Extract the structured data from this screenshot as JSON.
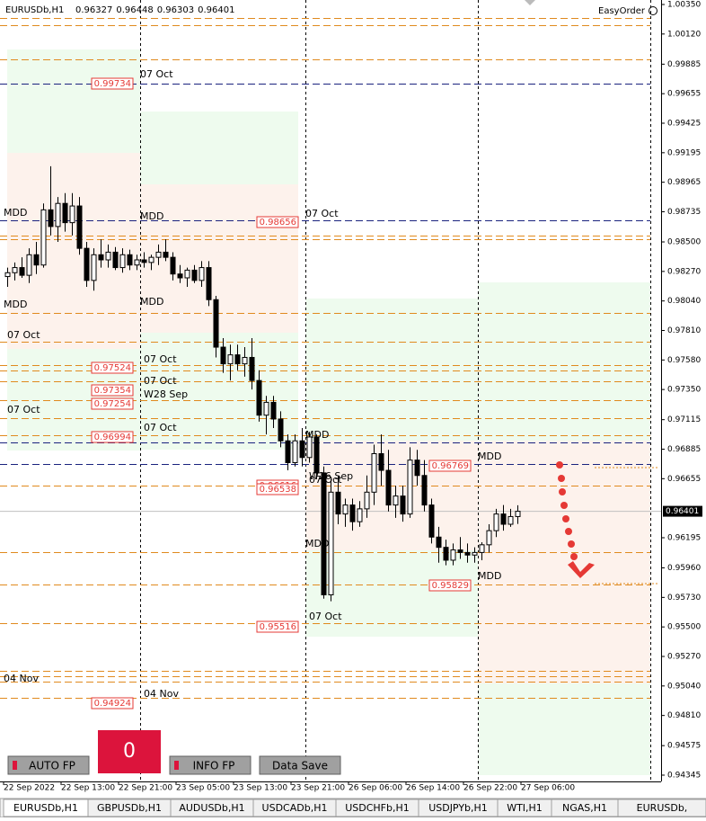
{
  "header": {
    "symbol": "EURUSDb,H1",
    "ohlc": [
      0.96327,
      0.96448,
      0.96303,
      0.96401
    ],
    "easy_order": "EasyOrder"
  },
  "chart_data": {
    "type": "candlestick",
    "open": [
      0.9823,
      0.9826,
      0.983,
      0.9824,
      0.984,
      0.9832,
      0.9875,
      0.9862,
      0.988,
      0.9865,
      0.9878,
      0.9845,
      0.982,
      0.984,
      0.9836,
      0.9842,
      0.983,
      0.984,
      0.9832,
      0.9836,
      0.9834,
      0.9838,
      0.9842,
      0.9838,
      0.9825,
      0.9822,
      0.9828,
      0.982,
      0.983,
      0.9805,
      0.9768,
      0.9755,
      0.9762,
      0.9755,
      0.976,
      0.9742,
      0.9715,
      0.9725,
      0.9712,
      0.9695,
      0.9678,
      0.9695,
      0.9682,
      0.9698,
      0.967,
      0.9575,
      0.9655,
      0.9638,
      0.9645,
      0.9632,
      0.9642,
      0.9655,
      0.9685,
      0.9672,
      0.9645,
      0.9652,
      0.9638,
      0.968,
      0.9668,
      0.9645,
      0.962,
      0.9612,
      0.9602,
      0.961,
      0.9608,
      0.9606,
      0.9608,
      0.9614,
      0.9625,
      0.9638,
      0.963,
      0.9636
    ],
    "high": [
      0.983,
      0.9834,
      0.9838,
      0.9845,
      0.985,
      0.988,
      0.9909,
      0.9885,
      0.9888,
      0.9888,
      0.9885,
      0.985,
      0.9845,
      0.9852,
      0.9848,
      0.9846,
      0.9845,
      0.9844,
      0.984,
      0.9842,
      0.984,
      0.9848,
      0.9852,
      0.9842,
      0.9832,
      0.983,
      0.9832,
      0.9835,
      0.9835,
      0.9808,
      0.9775,
      0.977,
      0.977,
      0.9768,
      0.9775,
      0.975,
      0.973,
      0.973,
      0.9718,
      0.97,
      0.97,
      0.9705,
      0.9702,
      0.97,
      0.9675,
      0.9665,
      0.9668,
      0.965,
      0.965,
      0.9648,
      0.9668,
      0.9692,
      0.97,
      0.9688,
      0.966,
      0.966,
      0.969,
      0.9688,
      0.968,
      0.965,
      0.9628,
      0.9618,
      0.9615,
      0.962,
      0.9615,
      0.9612,
      0.9616,
      0.963,
      0.9642,
      0.9645,
      0.9642,
      0.96448
    ],
    "low": [
      0.9815,
      0.982,
      0.9822,
      0.9818,
      0.9825,
      0.983,
      0.9855,
      0.985,
      0.9858,
      0.9855,
      0.984,
      0.9815,
      0.9812,
      0.983,
      0.983,
      0.9828,
      0.9826,
      0.9828,
      0.9828,
      0.983,
      0.9828,
      0.9832,
      0.9835,
      0.982,
      0.9818,
      0.9815,
      0.9818,
      0.9815,
      0.98,
      0.976,
      0.9748,
      0.9742,
      0.975,
      0.9745,
      0.9735,
      0.971,
      0.97,
      0.9705,
      0.969,
      0.9672,
      0.9675,
      0.9675,
      0.9678,
      0.9665,
      0.9572,
      0.957,
      0.963,
      0.9628,
      0.9625,
      0.9628,
      0.9635,
      0.9645,
      0.966,
      0.964,
      0.9635,
      0.9632,
      0.9635,
      0.966,
      0.964,
      0.9615,
      0.96,
      0.9598,
      0.9598,
      0.9603,
      0.96,
      0.96,
      0.9602,
      0.9608,
      0.962,
      0.9625,
      0.9628,
      0.96303
    ],
    "close": [
      0.9826,
      0.983,
      0.9824,
      0.984,
      0.9832,
      0.9875,
      0.9862,
      0.988,
      0.9865,
      0.9878,
      0.9845,
      0.982,
      0.984,
      0.9836,
      0.9842,
      0.983,
      0.984,
      0.9832,
      0.9836,
      0.9834,
      0.9838,
      0.9842,
      0.9838,
      0.9825,
      0.9822,
      0.9828,
      0.982,
      0.983,
      0.9805,
      0.9768,
      0.9755,
      0.9762,
      0.9755,
      0.976,
      0.9742,
      0.9715,
      0.9725,
      0.9712,
      0.9695,
      0.9678,
      0.9695,
      0.9682,
      0.9698,
      0.967,
      0.9575,
      0.9655,
      0.9638,
      0.9645,
      0.9632,
      0.9642,
      0.9655,
      0.9685,
      0.9672,
      0.9645,
      0.9652,
      0.9638,
      0.968,
      0.9668,
      0.9645,
      0.962,
      0.9612,
      0.9602,
      0.961,
      0.9608,
      0.9606,
      0.9608,
      0.9614,
      0.9625,
      0.9638,
      0.963,
      0.9636,
      0.96401
    ],
    "up_color": "#ffffff",
    "down_color": "#000000",
    "ylim": [
      0.94296,
      1.00385
    ],
    "yticks": [
      {
        "value": 1.0035,
        "label": "1.00350"
      },
      {
        "value": 1.0012,
        "label": "1.00120"
      },
      0.99885,
      0.99655,
      0.99425,
      0.99195,
      0.98965,
      0.98735,
      {
        "value": 0.985,
        "label": "0.98500"
      },
      {
        "value": 0.9827,
        "label": "0.98270"
      },
      {
        "value": 0.9804,
        "label": "0.98040"
      },
      {
        "value": 0.9781,
        "label": "0.97810"
      },
      {
        "value": 0.9758,
        "label": "0.97580"
      },
      {
        "value": 0.9735,
        "label": "0.97350"
      },
      0.97115,
      0.96885,
      0.96655,
      0.96195,
      {
        "value": 0.9596,
        "label": "0.95960"
      },
      {
        "value": 0.9573,
        "label": "0.95730"
      },
      {
        "value": 0.955,
        "label": "0.95500"
      },
      {
        "value": 0.9527,
        "label": "0.95270"
      },
      {
        "value": 0.9504,
        "label": "0.95040"
      },
      {
        "value": 0.9481,
        "label": "0.94810"
      },
      0.94575,
      0.94345
    ],
    "time_labels": [
      "22 Sep 2022",
      "22 Sep 13:00",
      "22 Sep 21:00",
      "23 Sep 05:00",
      "23 Sep 13:00",
      "23 Sep 21:00",
      "26 Sep 06:00",
      "26 Sep 14:00",
      "26 Sep 22:00",
      "27 Sep 06:00"
    ],
    "orange_levels": [
      1.00245,
      1.00189,
      0.99923,
      0.98549,
      0.98521,
      0.97947,
      0.97722,
      0.9754,
      0.97498,
      0.97414,
      0.97267,
      0.97127,
      0.96994,
      0.96601,
      0.96083,
      0.95831,
      0.9553,
      0.95158,
      0.95116,
      0.95074,
      0.94948
    ],
    "orange_color": "#e08a1e",
    "navy_levels": [
      0.99734,
      0.98668,
      0.96938,
      0.96769
    ],
    "navy_color": "#1a237e",
    "level_labels": [
      0.99734,
      0.98656,
      0.97524,
      0.97354,
      0.97254,
      0.96994,
      0.96616,
      0.96538,
      0.96769,
      0.95829,
      0.95516,
      0.94924
    ],
    "annotations": [
      "07 Oct",
      "MDD",
      "MDD",
      "07 Oct",
      "MDD",
      "MDD",
      "07 Oct",
      "07 Oct",
      "07 Oct",
      "W28 Sep",
      "07 Oct",
      "07 Oct",
      "MDD",
      "W26 Sep",
      "07 Oct",
      "MDD",
      "MDD",
      "MDD",
      "07 Oct",
      "04 Nov",
      "04 Nov"
    ]
  },
  "buttons": [
    "AUTO FP",
    "0",
    "INFO FP",
    "Data Save"
  ],
  "tabs": [
    "EURUSDb,H1",
    "GBPUSDb,H1",
    "AUDUSDb,H1",
    "USDCADb,H1",
    "USDCHFb,H1",
    "USDJPYb,H1",
    "WTI,H1",
    "NGAS,H1",
    "EURUSDb,"
  ]
}
